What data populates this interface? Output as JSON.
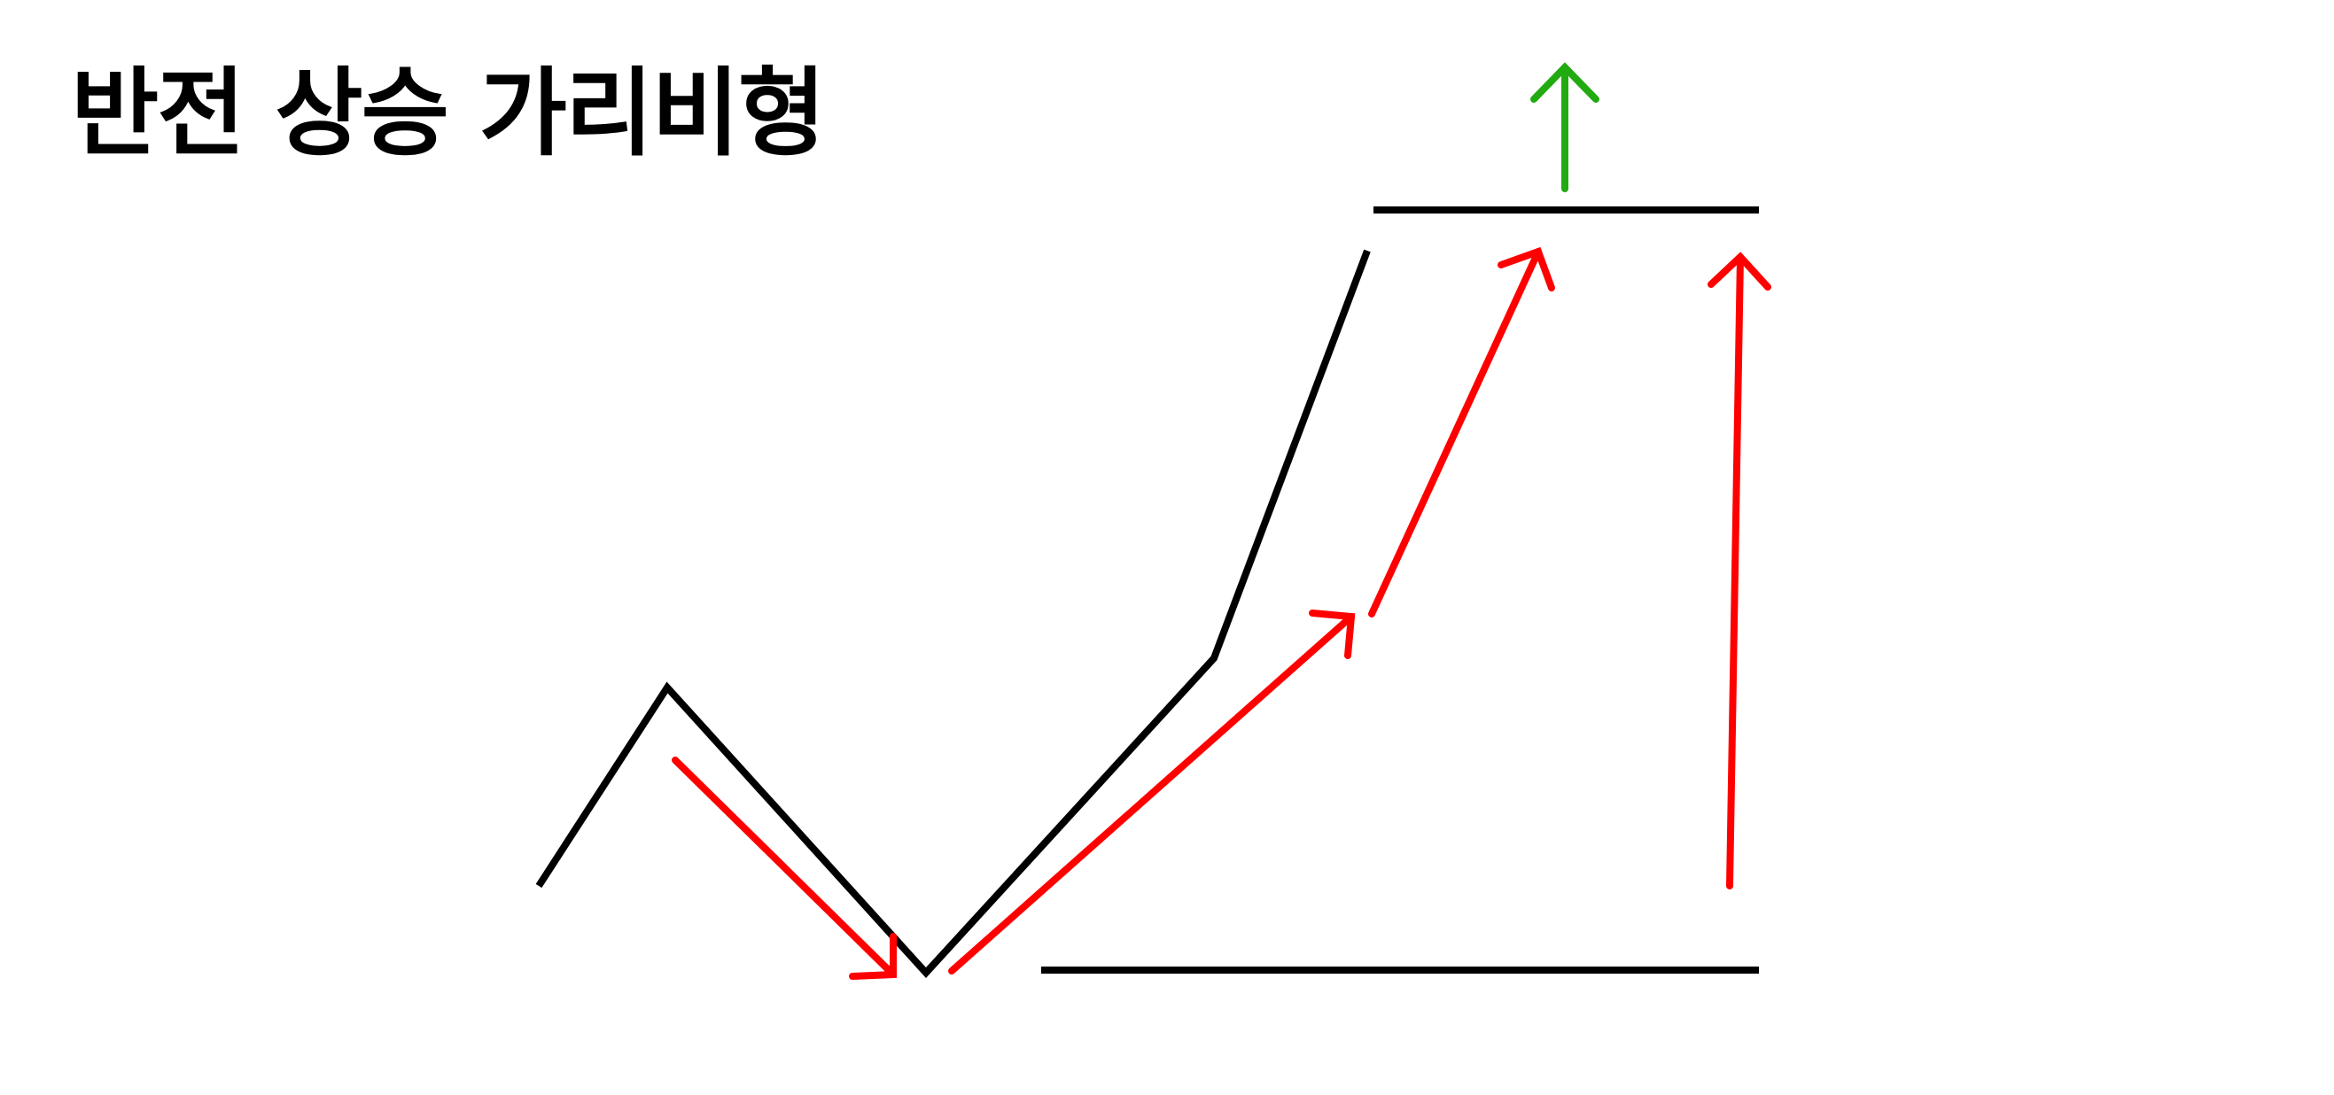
{
  "title": "반전 상승 가리비형",
  "colors": {
    "price_line": "#000000",
    "movement_arrows": "#ff0000",
    "breakout_arrow": "#22aa11",
    "background": "#ffffff"
  }
}
